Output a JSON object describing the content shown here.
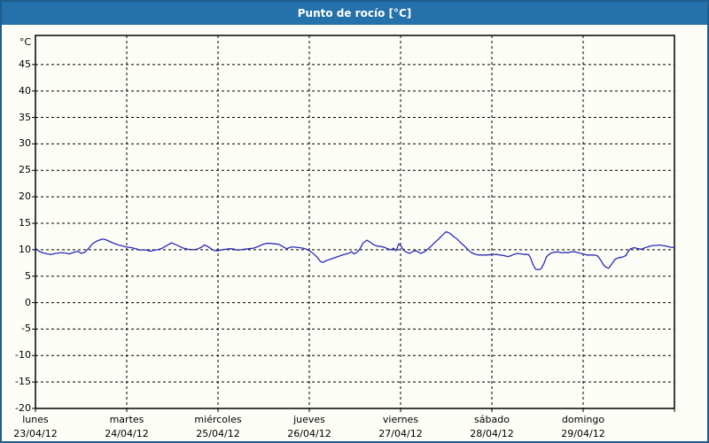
{
  "title": "Punto de rocío [°C]",
  "colors": {
    "titlebar_bg": "#2471ab",
    "frame_border": "#1f5d8f",
    "plot_background": "#fdfdf7",
    "grid": "#000000",
    "series_line": "#2a2ab8"
  },
  "chart_data": {
    "type": "line",
    "title": "Punto de rocío [°C]",
    "xlabel": "",
    "ylabel": "°C",
    "y_unit_label": "°C",
    "ylim": [
      -20,
      50.5
    ],
    "yticks": [
      45,
      40,
      35,
      30,
      25,
      20,
      15,
      10,
      5,
      0,
      -5,
      -10,
      -15,
      -20
    ],
    "grid": "dashed",
    "legend": "none",
    "x_days": [
      {
        "name": "lunes",
        "date": "23/04/12"
      },
      {
        "name": "martes",
        "date": "24/04/12"
      },
      {
        "name": "miércoles",
        "date": "25/04/12"
      },
      {
        "name": "jueves",
        "date": "26/04/12"
      },
      {
        "name": "viernes",
        "date": "27/04/12"
      },
      {
        "name": "sábado",
        "date": "28/04/12"
      },
      {
        "name": "domingo",
        "date": "29/04/12"
      }
    ],
    "x_unit": "days_from_2012-04-23",
    "series": [
      {
        "name": "Punto de rocío",
        "color": "#2a2ab8",
        "points": [
          [
            0,
            10.3
          ],
          [
            0.04,
            9.7
          ],
          [
            0.08,
            9.4
          ],
          [
            0.13,
            9.2
          ],
          [
            0.17,
            9.1
          ],
          [
            0.22,
            9.3
          ],
          [
            0.27,
            9.4
          ],
          [
            0.32,
            9.4
          ],
          [
            0.37,
            9.2
          ],
          [
            0.42,
            9.5
          ],
          [
            0.47,
            9.7
          ],
          [
            0.5,
            9.3
          ],
          [
            0.54,
            9.5
          ],
          [
            0.58,
            10.2
          ],
          [
            0.63,
            11.2
          ],
          [
            0.68,
            11.7
          ],
          [
            0.73,
            12
          ],
          [
            0.77,
            11.9
          ],
          [
            0.82,
            11.5
          ],
          [
            0.86,
            11.2
          ],
          [
            0.91,
            10.9
          ],
          [
            0.96,
            10.7
          ],
          [
            1,
            10.5
          ],
          [
            1.05,
            10.4
          ],
          [
            1.1,
            10.2
          ],
          [
            1.15,
            9.9
          ],
          [
            1.18,
            10
          ],
          [
            1.22,
            9.9
          ],
          [
            1.26,
            9.7
          ],
          [
            1.3,
            9.9
          ],
          [
            1.34,
            10
          ],
          [
            1.39,
            10.3
          ],
          [
            1.44,
            10.8
          ],
          [
            1.49,
            11.3
          ],
          [
            1.52,
            11.1
          ],
          [
            1.57,
            10.7
          ],
          [
            1.62,
            10.3
          ],
          [
            1.67,
            10.1
          ],
          [
            1.72,
            10
          ],
          [
            1.77,
            10.1
          ],
          [
            1.82,
            10.5
          ],
          [
            1.85,
            10.9
          ],
          [
            1.89,
            10.6
          ],
          [
            1.93,
            10.1
          ],
          [
            1.97,
            9.8
          ],
          [
            2,
            9.8
          ],
          [
            2.04,
            10
          ],
          [
            2.09,
            10.1
          ],
          [
            2.14,
            10.2
          ],
          [
            2.18,
            10.1
          ],
          [
            2.21,
            9.9
          ],
          [
            2.25,
            10
          ],
          [
            2.29,
            10.1
          ],
          [
            2.34,
            10.2
          ],
          [
            2.39,
            10.3
          ],
          [
            2.44,
            10.6
          ],
          [
            2.49,
            11
          ],
          [
            2.53,
            11.2
          ],
          [
            2.58,
            11.2
          ],
          [
            2.63,
            11.1
          ],
          [
            2.67,
            11
          ],
          [
            2.71,
            10.6
          ],
          [
            2.75,
            10.2
          ],
          [
            2.8,
            10.5
          ],
          [
            2.84,
            10.5
          ],
          [
            2.89,
            10.4
          ],
          [
            2.93,
            10.3
          ],
          [
            2.97,
            10.1
          ],
          [
            3.01,
            9.7
          ],
          [
            3.05,
            9.2
          ],
          [
            3.09,
            8.5
          ],
          [
            3.12,
            7.8
          ],
          [
            3.15,
            7.6
          ],
          [
            3.18,
            7.9
          ],
          [
            3.23,
            8.2
          ],
          [
            3.28,
            8.5
          ],
          [
            3.33,
            8.8
          ],
          [
            3.38,
            9.1
          ],
          [
            3.43,
            9.3
          ],
          [
            3.46,
            9.6
          ],
          [
            3.49,
            9.2
          ],
          [
            3.52,
            9.5
          ],
          [
            3.55,
            10
          ],
          [
            3.59,
            11.3
          ],
          [
            3.63,
            11.8
          ],
          [
            3.66,
            11.5
          ],
          [
            3.7,
            11
          ],
          [
            3.74,
            10.7
          ],
          [
            3.79,
            10.6
          ],
          [
            3.83,
            10.4
          ],
          [
            3.87,
            10.1
          ],
          [
            3.9,
            10
          ],
          [
            3.92,
            10.3
          ],
          [
            3.95,
            9.8
          ],
          [
            3.98,
            11.1
          ],
          [
            4,
            10.8
          ],
          [
            4.04,
            9.8
          ],
          [
            4.07,
            9.5
          ],
          [
            4.1,
            9.3
          ],
          [
            4.14,
            9.7
          ],
          [
            4.17,
            9.8
          ],
          [
            4.19,
            9.6
          ],
          [
            4.22,
            9.3
          ],
          [
            4.26,
            9.6
          ],
          [
            4.29,
            10
          ],
          [
            4.33,
            10.6
          ],
          [
            4.37,
            11.3
          ],
          [
            4.41,
            11.9
          ],
          [
            4.45,
            12.6
          ],
          [
            4.48,
            13.1
          ],
          [
            4.5,
            13.4
          ],
          [
            4.54,
            13.1
          ],
          [
            4.58,
            12.5
          ],
          [
            4.62,
            12
          ],
          [
            4.66,
            11.3
          ],
          [
            4.7,
            10.7
          ],
          [
            4.74,
            10
          ],
          [
            4.77,
            9.5
          ],
          [
            4.81,
            9.2
          ],
          [
            4.85,
            9
          ],
          [
            4.9,
            9
          ],
          [
            4.95,
            9
          ],
          [
            5,
            9.1
          ],
          [
            5.05,
            9.1
          ],
          [
            5.09,
            9
          ],
          [
            5.13,
            8.9
          ],
          [
            5.17,
            8.7
          ],
          [
            5.2,
            8.8
          ],
          [
            5.24,
            9.1
          ],
          [
            5.28,
            9.3
          ],
          [
            5.32,
            9.2
          ],
          [
            5.36,
            9.1
          ],
          [
            5.4,
            9.1
          ],
          [
            5.42,
            8.6
          ],
          [
            5.45,
            7.2
          ],
          [
            5.48,
            6.3
          ],
          [
            5.51,
            6.2
          ],
          [
            5.54,
            6.4
          ],
          [
            5.57,
            7.4
          ],
          [
            5.6,
            8.7
          ],
          [
            5.64,
            9.3
          ],
          [
            5.68,
            9.5
          ],
          [
            5.72,
            9.6
          ],
          [
            5.76,
            9.4
          ],
          [
            5.8,
            9.5
          ],
          [
            5.83,
            9.4
          ],
          [
            5.87,
            9.6
          ],
          [
            5.91,
            9.6
          ],
          [
            5.95,
            9.4
          ],
          [
            6,
            9.2
          ],
          [
            6.04,
            9
          ],
          [
            6.08,
            9
          ],
          [
            6.12,
            9
          ],
          [
            6.16,
            8.8
          ],
          [
            6.19,
            8.1
          ],
          [
            6.22,
            7.2
          ],
          [
            6.25,
            6.7
          ],
          [
            6.28,
            6.5
          ],
          [
            6.31,
            7.2
          ],
          [
            6.35,
            8.2
          ],
          [
            6.39,
            8.5
          ],
          [
            6.43,
            8.6
          ],
          [
            6.47,
            8.9
          ],
          [
            6.49,
            9.6
          ],
          [
            6.52,
            10.2
          ],
          [
            6.56,
            10.4
          ],
          [
            6.6,
            10.2
          ],
          [
            6.64,
            10.1
          ],
          [
            6.68,
            10.4
          ],
          [
            6.72,
            10.6
          ],
          [
            6.76,
            10.8
          ],
          [
            6.8,
            10.8
          ],
          [
            6.83,
            10.9
          ],
          [
            6.87,
            10.8
          ],
          [
            6.91,
            10.7
          ],
          [
            6.95,
            10.5
          ],
          [
            7,
            10.4
          ]
        ]
      }
    ]
  }
}
